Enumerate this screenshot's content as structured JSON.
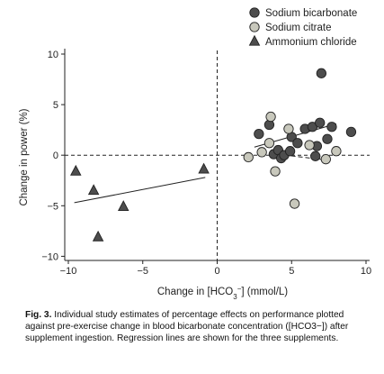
{
  "chart_data": {
    "type": "scatter",
    "xlabel_main": "Change in [HCO",
    "xlabel_sub": "3",
    "xlabel_sup": "−",
    "xlabel_tail": "] (mmol/L)",
    "ylabel": "Change in power (%)",
    "xlim": [
      -10,
      10
    ],
    "ylim": [
      -10.5,
      10
    ],
    "xticks": [
      -10,
      -5,
      0,
      5,
      10
    ],
    "yticks": [
      -10,
      -5,
      0,
      5,
      10
    ],
    "xtick_labels": [
      "−10",
      "−5",
      "0",
      "5",
      "10"
    ],
    "ytick_labels": [
      "−10",
      "−5",
      "0",
      "5",
      "10"
    ],
    "legend_position": "top-right",
    "series": [
      {
        "name": "Sodium bicarbonate",
        "marker": "circle",
        "color": "#4d4d4d",
        "line_style": "solid",
        "regression": [
          [
            2.5,
            0.8
          ],
          [
            8.0,
            3.1
          ]
        ],
        "points": [
          [
            2.8,
            2.1
          ],
          [
            3.5,
            3.0
          ],
          [
            3.8,
            0.1
          ],
          [
            4.1,
            0.5
          ],
          [
            4.3,
            -0.3
          ],
          [
            4.5,
            0.0
          ],
          [
            4.9,
            0.4
          ],
          [
            5.0,
            1.8
          ],
          [
            5.4,
            1.2
          ],
          [
            5.9,
            2.6
          ],
          [
            6.4,
            2.8
          ],
          [
            6.6,
            -0.1
          ],
          [
            6.7,
            0.9
          ],
          [
            6.9,
            3.2
          ],
          [
            7.0,
            8.1
          ],
          [
            7.4,
            1.6
          ],
          [
            7.7,
            2.8
          ],
          [
            9.0,
            2.3
          ]
        ]
      },
      {
        "name": "Sodium citrate",
        "marker": "circle",
        "color": "#c8c8bc",
        "line_style": "dashed",
        "regression": [
          [
            4.0,
            0.1
          ],
          [
            7.5,
            -0.5
          ]
        ],
        "points": [
          [
            2.1,
            -0.2
          ],
          [
            3.0,
            0.3
          ],
          [
            3.5,
            1.2
          ],
          [
            3.6,
            3.8
          ],
          [
            3.9,
            -1.6
          ],
          [
            4.8,
            2.6
          ],
          [
            5.2,
            -4.8
          ],
          [
            6.2,
            1.0
          ],
          [
            7.3,
            -0.4
          ],
          [
            8.0,
            0.4
          ]
        ]
      },
      {
        "name": "Ammonium chloride",
        "marker": "triangle",
        "color": "#4d4d4d",
        "line_style": "solid",
        "regression": [
          [
            -9.6,
            -4.7
          ],
          [
            -0.8,
            -2.2
          ]
        ],
        "points": [
          [
            -9.5,
            -1.6
          ],
          [
            -8.3,
            -3.5
          ],
          [
            -8.0,
            -8.1
          ],
          [
            -6.3,
            -5.1
          ],
          [
            -0.9,
            -1.4
          ]
        ]
      }
    ]
  },
  "caption": {
    "label": "Fig. 3.",
    "text": "Individual study estimates of percentage effects on performance plotted against pre-exercise change in blood bicarbonate concentration ([HCO3−]) after supplement ingestion. Regression lines are shown for the three supplements."
  }
}
